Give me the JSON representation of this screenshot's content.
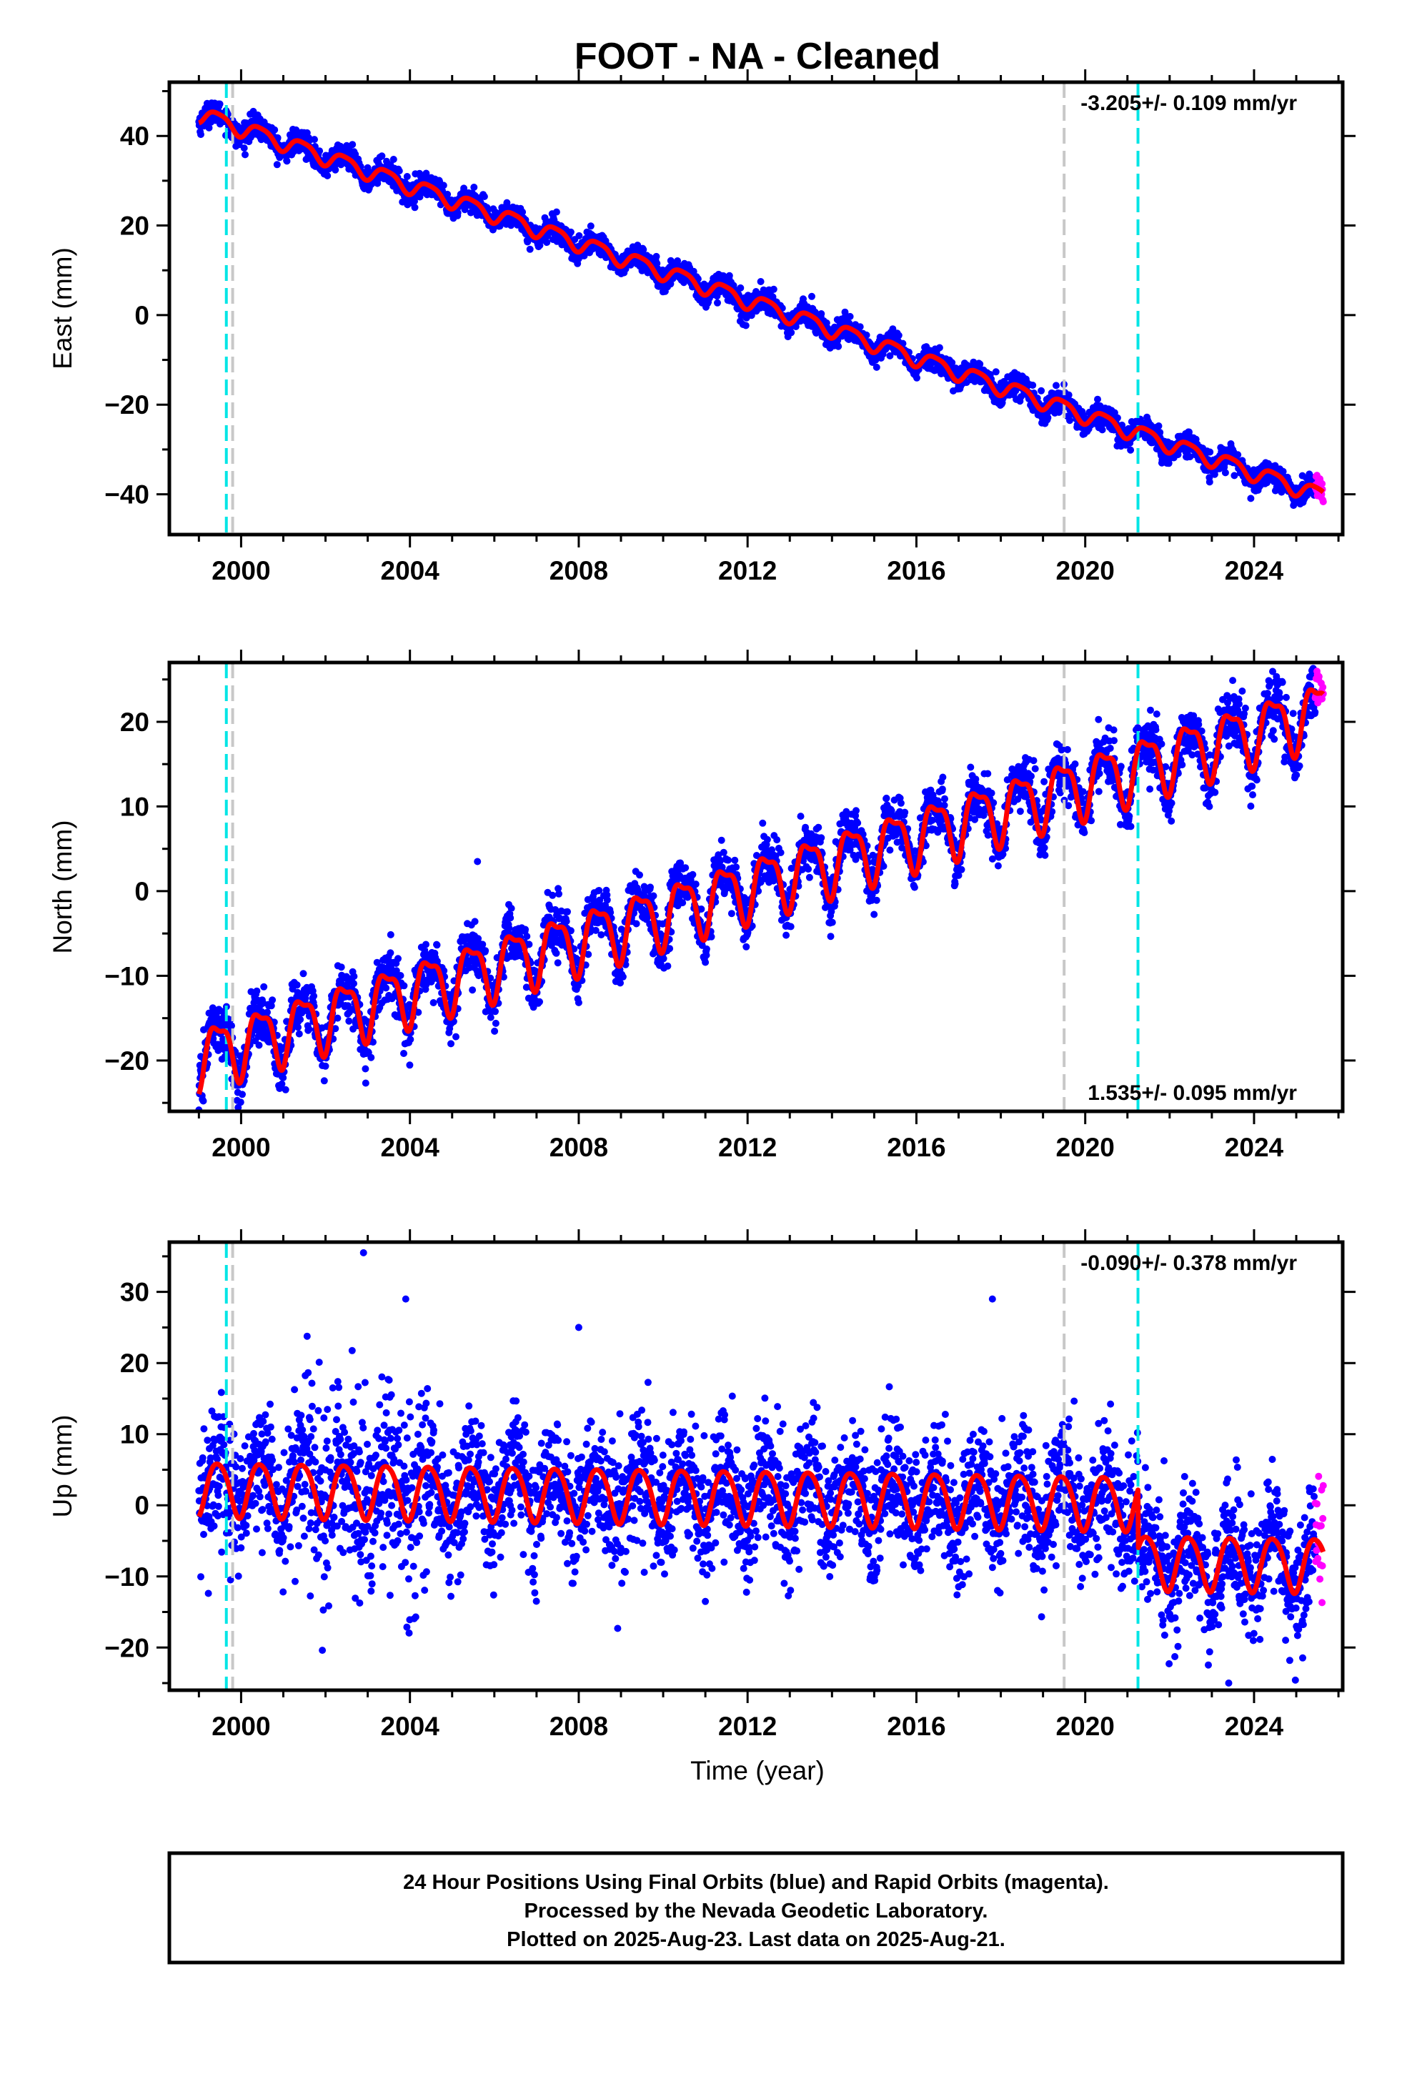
{
  "title": "FOOT  - NA - Cleaned",
  "xlabel": "Time (year)",
  "footer": {
    "line1": "24 Hour Positions Using Final Orbits (blue) and Rapid Orbits (magenta).",
    "line2": "Processed by the Nevada Geodetic Laboratory.",
    "line3": "Plotted on 2025-Aug-23. Last data on 2025-Aug-21."
  },
  "colors": {
    "final_orbits": "#0000ff",
    "rapid_orbits": "#ff00ff",
    "model": "#ff0000",
    "gray_line": "#c8c8c8",
    "cyan_line": "#00e5e5"
  },
  "chart_data": [
    {
      "type": "scatter",
      "name": "east",
      "ylabel": "East (mm)",
      "rate_label": "-3.205+/- 0.109 mm/yr",
      "rate_position": "top-right",
      "xlim": [
        1998.3,
        2026.1
      ],
      "ylim": [
        -49,
        52
      ],
      "xticks": [
        2000,
        2004,
        2008,
        2012,
        2016,
        2020,
        2024
      ],
      "yticks": [
        -40,
        -20,
        0,
        20,
        40
      ],
      "gray_lines": [
        1999.8,
        2019.5
      ],
      "cyan_lines": [
        1999.65,
        2021.25
      ],
      "data_start": 1999.0,
      "data_end": 2025.64,
      "rapid_start": 2025.45,
      "model": {
        "offset_at_1999": 45.0,
        "rate": -3.205,
        "annual_amp": 1.8,
        "semiannual_amp": 0.4,
        "steps": []
      },
      "scatter_sd": 1.3,
      "outliers": [],
      "x": [
        1999.0,
        2000.0,
        2004.0,
        2008.0,
        2012.0,
        2016.0,
        2020.0,
        2024.0,
        2025.6
      ],
      "y": [
        45.0,
        41.8,
        29.0,
        16.2,
        3.4,
        -9.4,
        -22.2,
        -35.0,
        -40.1
      ]
    },
    {
      "type": "scatter",
      "name": "north",
      "ylabel": "North (mm)",
      "rate_label": "1.535+/- 0.095 mm/yr",
      "rate_position": "bottom-right",
      "xlim": [
        1998.3,
        2026.1
      ],
      "ylim": [
        -26,
        27
      ],
      "xticks": [
        2000,
        2004,
        2008,
        2012,
        2016,
        2020,
        2024
      ],
      "yticks": [
        -20,
        -10,
        0,
        10,
        20
      ],
      "gray_lines": [
        1999.8,
        2019.5
      ],
      "cyan_lines": [
        1999.65,
        2021.25
      ],
      "data_start": 1999.0,
      "data_end": 2025.64,
      "rapid_start": 2025.45,
      "model": {
        "offset_at_1999": -19.5,
        "rate": 1.535,
        "annual_amp": 3.5,
        "semiannual_amp": 1.2,
        "steps": []
      },
      "scatter_sd": 1.6,
      "outliers": [
        [
          2005.6,
          3.5
        ]
      ],
      "x": [
        1999.0,
        2000.0,
        2004.0,
        2008.0,
        2012.0,
        2016.0,
        2020.0,
        2024.0,
        2025.6
      ],
      "y": [
        -19.5,
        -18.0,
        -11.8,
        -5.7,
        0.4,
        6.6,
        12.7,
        18.9,
        21.3
      ]
    },
    {
      "type": "scatter",
      "name": "up",
      "ylabel": "Up (mm)",
      "rate_label": "-0.090+/- 0.378 mm/yr",
      "rate_position": "top-right",
      "xlim": [
        1998.3,
        2026.1
      ],
      "ylim": [
        -26,
        37
      ],
      "xticks": [
        2000,
        2004,
        2008,
        2012,
        2016,
        2020,
        2024
      ],
      "yticks": [
        -20,
        -10,
        0,
        10,
        20,
        30
      ],
      "gray_lines": [
        1999.8,
        2019.5
      ],
      "cyan_lines": [
        1999.65,
        2021.25
      ],
      "data_start": 1999.0,
      "data_end": 2025.64,
      "rapid_start": 2025.45,
      "model": {
        "offset_at_1999": 2.5,
        "rate": -0.09,
        "annual_amp": 3.8,
        "semiannual_amp": 0.5,
        "steps": [
          [
            2021.25,
            -8.3
          ]
        ]
      },
      "scatter_sd": 4.5,
      "outliers": [
        [
          2002.9,
          35.5
        ],
        [
          2017.8,
          29.0
        ],
        [
          2008.0,
          25.0
        ],
        [
          2003.9,
          29.0
        ],
        [
          2023.4,
          -25.0
        ]
      ],
      "x": [
        1999.0,
        2000.0,
        2004.0,
        2008.0,
        2012.0,
        2016.0,
        2020.0,
        2021.3,
        2024.0,
        2025.6
      ],
      "y": [
        2.5,
        2.4,
        2.1,
        1.7,
        1.4,
        1.0,
        0.6,
        -7.8,
        -8.0,
        -8.2
      ]
    }
  ]
}
